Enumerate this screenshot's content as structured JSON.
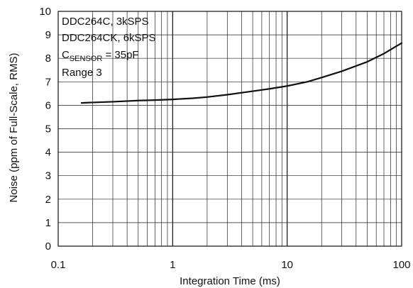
{
  "chart_data": {
    "type": "line",
    "x_scale": "log",
    "xlim": [
      0.1,
      100
    ],
    "ylim": [
      0,
      10
    ],
    "grid": true,
    "xlabel": "Integration Time (ms)",
    "ylabel": "Noise (ppm of Full-Scale, RMS)",
    "x_ticks": [
      "0.1",
      "1",
      "10",
      "100"
    ],
    "y_ticks": [
      "0",
      "1",
      "2",
      "3",
      "4",
      "5",
      "6",
      "7",
      "8",
      "9",
      "10"
    ],
    "legend": {
      "placement": "top-left",
      "line1": "DDC264C, 3kSPS",
      "line2": "DDC264CK, 6kSPS",
      "line3_main": "C",
      "line3_sub": "SENSOR",
      "line3_rest": " = 35pF",
      "line4": "Range 3"
    },
    "series": [
      {
        "color": "#111111",
        "x": [
          0.16,
          0.2,
          0.3,
          0.5,
          0.7,
          1,
          1.5,
          2,
          3,
          5,
          7,
          10,
          15,
          20,
          30,
          50,
          70,
          100
        ],
        "y": [
          6.1,
          6.12,
          6.15,
          6.2,
          6.22,
          6.25,
          6.3,
          6.35,
          6.45,
          6.6,
          6.7,
          6.82,
          7.0,
          7.18,
          7.45,
          7.85,
          8.2,
          8.65
        ]
      }
    ]
  }
}
